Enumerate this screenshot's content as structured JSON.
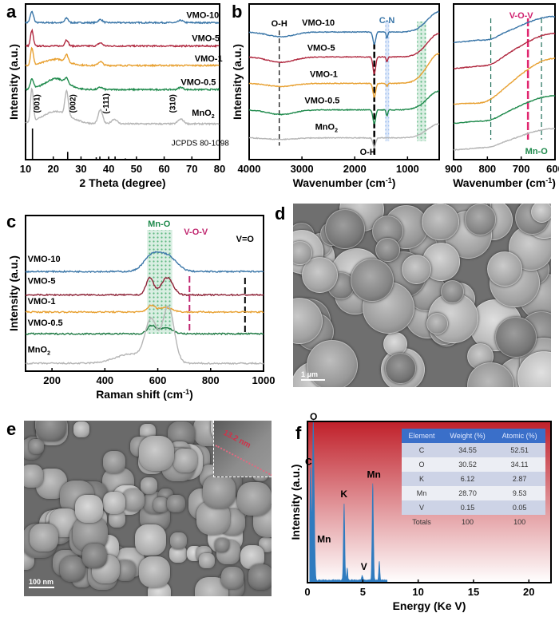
{
  "panel_labels": [
    "a",
    "b",
    "c",
    "d",
    "e",
    "f"
  ],
  "chart_data": [
    {
      "id": "a",
      "type": "line",
      "xlabel": "2 Theta (degree)",
      "ylabel": "Intensity (a.u.)",
      "xlim": [
        10,
        80
      ],
      "ylim": [
        0,
        10
      ],
      "xticks": [
        10,
        20,
        30,
        40,
        50,
        60,
        70,
        80
      ],
      "series": [
        {
          "name": "VMO-10",
          "color": "#3a76a8",
          "offset": 8.8,
          "peaks": [
            [
              12.3,
              0.7,
              0.6
            ],
            [
              24.8,
              0.3,
              0.6
            ],
            [
              37,
              0.2,
              0.8
            ],
            [
              66,
              0.15,
              0.8
            ]
          ]
        },
        {
          "name": "VMO-5",
          "color": "#b0283f",
          "offset": 7.3,
          "peaks": [
            [
              12.3,
              1.0,
              0.5
            ],
            [
              24.8,
              0.4,
              0.6
            ],
            [
              37,
              0.2,
              0.8
            ]
          ]
        },
        {
          "name": "VMO-1",
          "color": "#e8a030",
          "offset": 6.05,
          "peaks": [
            [
              12.3,
              1.1,
              0.5
            ],
            [
              21,
              0.4,
              4
            ],
            [
              24.8,
              0.45,
              0.6
            ],
            [
              37,
              0.25,
              0.8
            ]
          ]
        },
        {
          "name": "VMO-0.5",
          "color": "#1f8a4c",
          "offset": 4.5,
          "peaks": [
            [
              12.3,
              0.6,
              0.6
            ],
            [
              21,
              0.7,
              4
            ],
            [
              24.8,
              0.3,
              0.6
            ],
            [
              37,
              0.15,
              0.8
            ],
            [
              66,
              0.15,
              0.8
            ]
          ]
        },
        {
          "name": "MnO2",
          "label_sub": "2",
          "color": "#b5b5b5",
          "offset": 2.3,
          "peaks": [
            [
              12.3,
              2.1,
              0.5
            ],
            [
              21,
              0.8,
              5
            ],
            [
              24.8,
              1.5,
              0.6
            ],
            [
              37,
              0.9,
              0.8
            ],
            [
              42,
              0.3,
              1
            ],
            [
              66,
              0.3,
              1
            ]
          ]
        }
      ],
      "annotations": [
        "(001)",
        "(002)",
        "(-111)",
        "(310)"
      ],
      "annotation_x": [
        15,
        28,
        40,
        64
      ],
      "reference": {
        "label": "JCPDS 80-1098",
        "sticks": [
          [
            12.5,
            2.0
          ],
          [
            25.2,
            0.5
          ],
          [
            35.5,
            0.15
          ],
          [
            36.8,
            0.2
          ],
          [
            40,
            0.15
          ],
          [
            42.3,
            0.2
          ],
          [
            46,
            0.08
          ],
          [
            50,
            0.06
          ],
          [
            56,
            0.05
          ],
          [
            60,
            0.05
          ],
          [
            65,
            0.05
          ],
          [
            69,
            0.04
          ],
          [
            74,
            0.04
          ]
        ]
      }
    },
    {
      "id": "b",
      "type": "line",
      "xlabel": "Wavenumber (cm",
      "xlabel_sup": "-1",
      "xlabel_end": ")",
      "ylabel": "Intensity (a.u.)",
      "xlim": [
        4000,
        400
      ],
      "ylim": [
        0,
        10
      ],
      "xticks": [
        4000,
        3000,
        2000,
        1000
      ],
      "series": [
        {
          "name": "VMO-10",
          "color": "#3a76a8",
          "offset": 8.2,
          "peaks": [
            [
              3400,
              -0.3,
              250
            ],
            [
              1630,
              -0.8,
              25
            ],
            [
              1390,
              -0.4,
              15
            ],
            [
              400,
              1.3,
              220
            ]
          ]
        },
        {
          "name": "VMO-5",
          "color": "#b0283f",
          "offset": 6.6,
          "peaks": [
            [
              3400,
              -0.35,
              250
            ],
            [
              1630,
              -1.1,
              25
            ],
            [
              1390,
              -0.3,
              15
            ],
            [
              400,
              1.5,
              220
            ]
          ]
        },
        {
          "name": "VMO-1",
          "color": "#e8a030",
          "offset": 4.9,
          "peaks": [
            [
              3400,
              -0.2,
              250
            ],
            [
              1630,
              -0.9,
              25
            ],
            [
              1390,
              -0.2,
              15
            ],
            [
              400,
              1.9,
              220
            ]
          ]
        },
        {
          "name": "VMO-0.5",
          "color": "#1f8a4c",
          "offset": 3.2,
          "peaks": [
            [
              3400,
              -0.3,
              250
            ],
            [
              1630,
              -0.9,
              25
            ],
            [
              1390,
              -0.4,
              15
            ],
            [
              400,
              1.2,
              220
            ]
          ]
        },
        {
          "name": "MnO2",
          "label_sub": "2",
          "color": "#b5b5b5",
          "offset": 1.4,
          "peaks": [
            [
              3400,
              -0.1,
              250
            ],
            [
              1630,
              -0.6,
              25
            ],
            [
              400,
              0.9,
              220
            ]
          ]
        }
      ],
      "annotations": [
        {
          "text": "O-H",
          "x": 3430,
          "color": "#000"
        },
        {
          "text": "C-N",
          "x": 1390,
          "color": "#3a76a8"
        },
        {
          "text": "O-H",
          "x": 1630,
          "color": "#000"
        }
      ],
      "highlight_regions": [
        {
          "from": 1420,
          "to": 1350,
          "color": "#3a7be0"
        },
        {
          "from": 820,
          "to": 650,
          "color": "#2ea35c"
        }
      ]
    },
    {
      "id": "b-zoom",
      "type": "line",
      "xlabel": "Wavenumber (cm",
      "xlabel_sup": "-1",
      "xlabel_end": ")",
      "xlim": [
        900,
        600
      ],
      "ylim": [
        0,
        10
      ],
      "xticks": [
        900,
        800,
        700,
        600
      ],
      "series": [
        {
          "name": "VMO-10",
          "color": "#3a76a8",
          "offset": 7.5,
          "peaks": [
            [
              790,
              -0.15,
              20
            ],
            [
              600,
              1.7,
              110
            ]
          ]
        },
        {
          "name": "VMO-5",
          "color": "#b0283f",
          "offset": 5.8,
          "peaks": [
            [
              790,
              -0.2,
              25
            ],
            [
              600,
              2.3,
              110
            ]
          ]
        },
        {
          "name": "VMO-1",
          "color": "#e8a030",
          "offset": 3.5,
          "peaks": [
            [
              800,
              -0.3,
              35
            ],
            [
              600,
              3.0,
              110
            ]
          ]
        },
        {
          "name": "VMO-0.5",
          "color": "#1f8a4c",
          "offset": 2.3,
          "peaks": [
            [
              790,
              -0.15,
              25
            ],
            [
              600,
              1.8,
              110
            ]
          ]
        },
        {
          "name": "MnO2",
          "color": "#b5b5b5",
          "offset": 0.6,
          "peaks": [
            [
              790,
              -0.1,
              20
            ],
            [
              600,
              1.4,
              110
            ]
          ]
        }
      ],
      "annotations": [
        {
          "text": "V-O-V",
          "x": 680,
          "color": "#d0216f"
        },
        {
          "text": "Mn-O",
          "x": 640,
          "color": "#1f8a4c"
        }
      ],
      "marker_lines": [
        {
          "x": 790,
          "color": "#1f6f5a"
        },
        {
          "x": 680,
          "color": "#e0266f"
        },
        {
          "x": 640,
          "color": "#1f6f5a"
        }
      ]
    },
    {
      "id": "c",
      "type": "line",
      "xlabel": "Raman shift (cm",
      "xlabel_sup": "-1",
      "xlabel_end": ")",
      "ylabel": "Intensity (a.u.)",
      "xlim": [
        100,
        1000
      ],
      "ylim": [
        0,
        10
      ],
      "xticks": [
        200,
        400,
        600,
        800,
        1000
      ],
      "series": [
        {
          "name": "VMO-10",
          "color": "#3a76a8",
          "offset": 6.4,
          "peaks": [
            [
              575,
              0.9,
              30
            ],
            [
              635,
              1.0,
              35
            ]
          ]
        },
        {
          "name": "VMO-5",
          "color": "#8e2337",
          "offset": 4.9,
          "peaks": [
            [
              570,
              1.1,
              14
            ],
            [
              635,
              1.1,
              22
            ]
          ]
        },
        {
          "name": "VMO-1",
          "color": "#e8a030",
          "offset": 3.8,
          "peaks": [
            [
              575,
              0.4,
              15
            ],
            [
              630,
              0.3,
              25
            ]
          ]
        },
        {
          "name": "VMO-0.5",
          "color": "#1f7a44",
          "offset": 2.4,
          "peaks": [
            [
              575,
              0.5,
              15
            ],
            [
              630,
              0.4,
              25
            ]
          ]
        },
        {
          "name": "MnO2",
          "label_sub": "2",
          "color": "#b5b5b5",
          "offset": 0.5,
          "peaks": [
            [
              500,
              0.6,
              60
            ],
            [
              575,
              2.6,
              22
            ],
            [
              640,
              3.6,
              22
            ]
          ]
        }
      ],
      "annotations": [
        {
          "text": "Mn-O",
          "x": 605,
          "color": "#1f8a4c"
        },
        {
          "text": "V-O-V",
          "x": 720,
          "color": "#c0266f"
        },
        {
          "text": "V=O",
          "x": 930,
          "color": "#000"
        }
      ],
      "highlight_regions": [
        {
          "from": 560,
          "to": 655,
          "color": "#2ea35c"
        }
      ]
    },
    {
      "id": "f",
      "type": "area",
      "xlabel": "Energy (Ke V)",
      "ylabel": "Intensity (a.u.)",
      "xlim": [
        0,
        22
      ],
      "ylim": [
        0,
        100
      ],
      "xticks": [
        0,
        5,
        10,
        15,
        20
      ],
      "color": "#2f7bbf",
      "peaks": [
        [
          0.28,
          70,
          0.07
        ],
        [
          0.52,
          97,
          0.07
        ],
        [
          0.64,
          18,
          0.06
        ],
        [
          3.31,
          48,
          0.06
        ],
        [
          3.59,
          8,
          0.05
        ],
        [
          4.95,
          3,
          0.06
        ],
        [
          5.9,
          60,
          0.06
        ],
        [
          6.49,
          12,
          0.05
        ]
      ],
      "peak_labels": [
        {
          "text": "O",
          "x": 0.55,
          "y": 100
        },
        {
          "text": "C",
          "x": 0.1,
          "y": 72
        },
        {
          "text": "Mn",
          "x": 1.5,
          "y": 24
        },
        {
          "text": "K",
          "x": 3.3,
          "y": 52
        },
        {
          "text": "V",
          "x": 5.1,
          "y": 7
        },
        {
          "text": "Mn",
          "x": 6.0,
          "y": 64
        }
      ]
    }
  ],
  "eds_table": {
    "headers": [
      "Element",
      "Weight (%)",
      "Atomic (%)"
    ],
    "rows": [
      [
        "C",
        "34.55",
        "52.51"
      ],
      [
        "O",
        "30.52",
        "34.11"
      ],
      [
        "K",
        "6.12",
        "2.87"
      ],
      [
        "Mn",
        "28.70",
        "9.53"
      ],
      [
        "V",
        "0.15",
        "0.05"
      ],
      [
        "Totals",
        "100",
        "100"
      ]
    ]
  },
  "sem_d": {
    "scale_bar": "1 μm"
  },
  "sem_e": {
    "scale_bar": "100 nm",
    "inset_label": "13.2 nm"
  }
}
